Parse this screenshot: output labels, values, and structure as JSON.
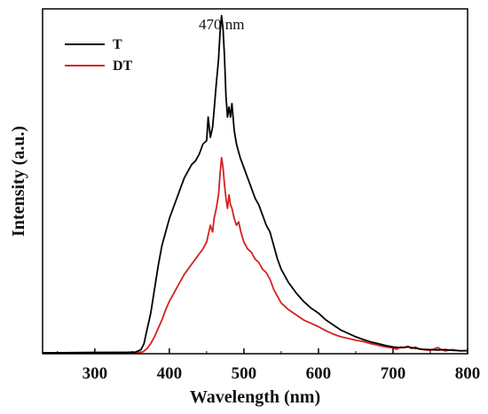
{
  "chart_data": {
    "type": "line",
    "title": "",
    "xlabel": "Wavelength (nm)",
    "ylabel": "Intensity (a.u.)",
    "xlim": [
      230,
      800
    ],
    "ylim": [
      0,
      1.02
    ],
    "x_ticks": [
      300,
      400,
      500,
      600,
      700,
      800
    ],
    "y_ticks_shown": false,
    "grid": false,
    "legend_position": "top-left",
    "annotation": {
      "text": "470 nm",
      "x": 470
    },
    "series": [
      {
        "name": "T",
        "color": "#000000",
        "x": [
          230,
          250,
          300,
          340,
          355,
          362,
          366,
          370,
          375,
          380,
          385,
          390,
          395,
          400,
          405,
          410,
          415,
          420,
          425,
          430,
          435,
          440,
          445,
          450,
          452,
          455,
          458,
          460,
          463,
          466,
          468,
          470,
          472,
          474,
          476,
          478,
          480,
          482,
          484,
          487,
          490,
          495,
          500,
          505,
          510,
          515,
          520,
          525,
          530,
          535,
          540,
          545,
          550,
          560,
          570,
          580,
          590,
          600,
          610,
          620,
          630,
          640,
          650,
          660,
          670,
          680,
          690,
          700,
          710,
          720,
          730,
          740,
          750,
          760,
          770,
          780,
          790,
          800
        ],
        "y": [
          0.003,
          0.003,
          0.004,
          0.004,
          0.005,
          0.012,
          0.03,
          0.07,
          0.12,
          0.19,
          0.26,
          0.32,
          0.36,
          0.4,
          0.43,
          0.46,
          0.49,
          0.52,
          0.54,
          0.56,
          0.57,
          0.59,
          0.62,
          0.63,
          0.7,
          0.64,
          0.67,
          0.72,
          0.8,
          0.87,
          0.95,
          1.0,
          0.96,
          0.88,
          0.76,
          0.7,
          0.73,
          0.7,
          0.74,
          0.66,
          0.62,
          0.58,
          0.55,
          0.52,
          0.49,
          0.46,
          0.44,
          0.41,
          0.38,
          0.36,
          0.32,
          0.28,
          0.25,
          0.21,
          0.18,
          0.155,
          0.135,
          0.12,
          0.1,
          0.085,
          0.07,
          0.06,
          0.05,
          0.042,
          0.035,
          0.03,
          0.024,
          0.02,
          0.018,
          0.02,
          0.016,
          0.013,
          0.012,
          0.011,
          0.012,
          0.01,
          0.009,
          0.009
        ]
      },
      {
        "name": "DT",
        "color": "#d62020",
        "x": [
          230,
          250,
          300,
          340,
          360,
          365,
          370,
          375,
          380,
          385,
          390,
          395,
          400,
          405,
          410,
          415,
          420,
          425,
          430,
          435,
          440,
          445,
          450,
          455,
          458,
          460,
          463,
          466,
          468,
          470,
          472,
          474,
          476,
          478,
          480,
          482,
          484,
          487,
          490,
          493,
          496,
          500,
          505,
          510,
          515,
          520,
          525,
          530,
          535,
          540,
          545,
          550,
          560,
          570,
          580,
          590,
          600,
          610,
          620,
          630,
          640,
          650,
          660,
          670,
          680,
          690,
          700,
          705,
          710,
          715,
          720,
          725,
          730,
          735,
          740,
          750,
          760,
          765,
          770,
          780,
          790,
          800
        ],
        "y": [
          0.003,
          0.003,
          0.003,
          0.004,
          0.004,
          0.006,
          0.015,
          0.03,
          0.05,
          0.075,
          0.1,
          0.13,
          0.155,
          0.175,
          0.195,
          0.215,
          0.235,
          0.25,
          0.265,
          0.28,
          0.295,
          0.31,
          0.33,
          0.38,
          0.36,
          0.4,
          0.43,
          0.47,
          0.53,
          0.58,
          0.55,
          0.5,
          0.46,
          0.43,
          0.47,
          0.44,
          0.43,
          0.4,
          0.38,
          0.39,
          0.36,
          0.33,
          0.31,
          0.3,
          0.28,
          0.27,
          0.25,
          0.24,
          0.22,
          0.19,
          0.17,
          0.15,
          0.13,
          0.115,
          0.1,
          0.09,
          0.08,
          0.068,
          0.058,
          0.05,
          0.045,
          0.04,
          0.036,
          0.03,
          0.025,
          0.02,
          0.017,
          0.013,
          0.02,
          0.018,
          0.022,
          0.015,
          0.02,
          0.014,
          0.012,
          0.01,
          0.018,
          0.012,
          0.008,
          0.012,
          0.008,
          0.009
        ]
      }
    ]
  }
}
